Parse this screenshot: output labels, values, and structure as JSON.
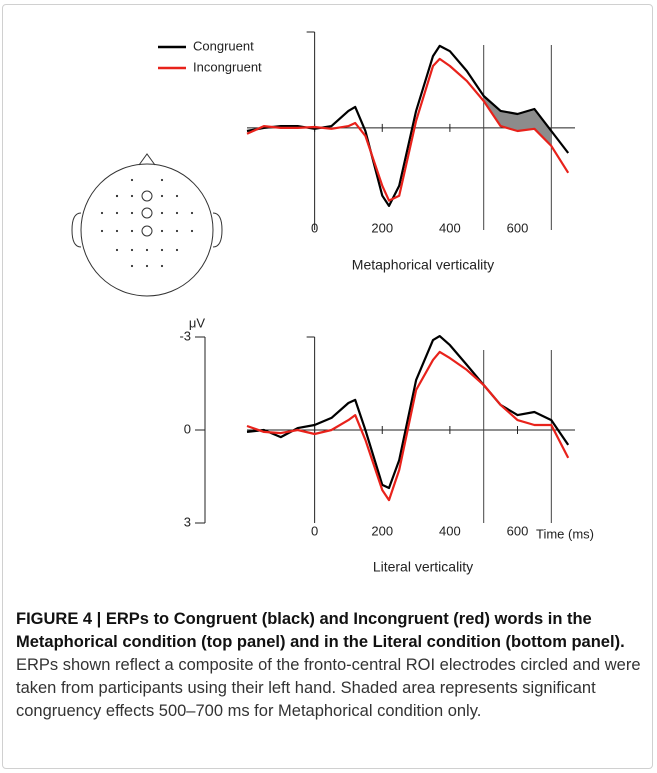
{
  "chart_data": [
    {
      "type": "line",
      "xlabel": "Metaphorical verticality",
      "x": [
        -200,
        -150,
        -100,
        -50,
        0,
        50,
        100,
        120,
        150,
        200,
        220,
        250,
        300,
        350,
        370,
        400,
        450,
        500,
        550,
        600,
        650,
        700,
        750
      ],
      "series": [
        {
          "name": "Congruent",
          "color": "#000000",
          "values": [
            0.1,
            0,
            -0.06,
            -0.06,
            0.03,
            -0.06,
            -0.55,
            -0.68,
            0.1,
            2.19,
            2.52,
            1.87,
            -0.55,
            -2.32,
            -2.65,
            -2.48,
            -1.84,
            -1.03,
            -0.55,
            -0.45,
            -0.61,
            0.1,
            0.81
          ]
        },
        {
          "name": "Incongruent",
          "color": "#e8221b",
          "values": [
            0.19,
            -0.06,
            0,
            0,
            -0.03,
            0.03,
            -0.06,
            -0.16,
            0.26,
            1.87,
            2.35,
            2.19,
            -0.23,
            -2,
            -2.23,
            -2,
            -1.52,
            -0.87,
            -0.06,
            0.1,
            0.03,
            0.58,
            1.45
          ]
        }
      ],
      "xlim": [
        -200,
        770
      ],
      "xticks": [
        0,
        200,
        400,
        600
      ],
      "ylim": [
        3.3,
        -3.1
      ],
      "vlines": [
        500,
        700
      ],
      "shade": true,
      "legend": true
    },
    {
      "type": "line",
      "xlabel": "Literal verticality",
      "xunit": "Time (ms)",
      "yunit": "μV",
      "x": [
        -200,
        -150,
        -100,
        -50,
        0,
        50,
        100,
        120,
        150,
        200,
        220,
        250,
        300,
        350,
        370,
        400,
        450,
        500,
        550,
        600,
        650,
        700,
        750
      ],
      "series": [
        {
          "name": "Congruent",
          "color": "#000000",
          "values": [
            0.06,
            0,
            0.23,
            -0.06,
            -0.16,
            -0.39,
            -0.87,
            -0.97,
            0,
            1.77,
            1.87,
            0.97,
            -1.61,
            -2.9,
            -3.03,
            -2.74,
            -2.1,
            -1.45,
            -0.81,
            -0.48,
            -0.58,
            -0.32,
            0.48
          ]
        },
        {
          "name": "Incongruent",
          "color": "#e8221b",
          "values": [
            -0.13,
            0.06,
            0.1,
            0,
            0.13,
            0,
            -0.32,
            -0.48,
            0.32,
            1.94,
            2.26,
            1.29,
            -1.29,
            -2.26,
            -2.52,
            -2.32,
            -1.94,
            -1.45,
            -0.81,
            -0.32,
            -0.16,
            -0.16,
            0.9
          ]
        }
      ],
      "xlim": [
        -200,
        770
      ],
      "xticks": [
        0,
        200,
        400,
        600
      ],
      "ylim": [
        3,
        -3
      ],
      "yticks": [
        -3,
        0,
        3
      ],
      "vlines": [
        500,
        700
      ],
      "shade": false,
      "legend": false
    }
  ],
  "caption": {
    "title": "FIGURE 4 | ERPs to Congruent (black) and Incongruent (red) words in the Metaphorical condition (top panel) and in the Literal condition (bottom panel).",
    "text": "ERPs shown reflect a composite of the fronto-central ROI electrodes circled and were taken from participants using their left hand. Shaded area represents significant congruency effects 500–700 ms for Metaphorical condition only."
  }
}
